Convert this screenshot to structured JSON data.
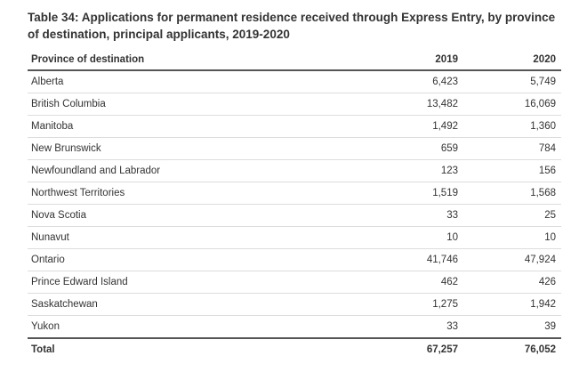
{
  "caption": "Table 34: Applications for permanent residence received through Express Entry, by province of destination, principal applicants, 2019-2020",
  "headers": {
    "province": "Province of destination",
    "y2019": "2019",
    "y2020": "2020"
  },
  "rows": [
    {
      "province": "Alberta",
      "y2019": "6,423",
      "y2020": "5,749"
    },
    {
      "province": "British Columbia",
      "y2019": "13,482",
      "y2020": "16,069"
    },
    {
      "province": "Manitoba",
      "y2019": "1,492",
      "y2020": "1,360"
    },
    {
      "province": "New Brunswick",
      "y2019": "659",
      "y2020": "784"
    },
    {
      "province": "Newfoundland and Labrador",
      "y2019": "123",
      "y2020": "156"
    },
    {
      "province": "Northwest Territories",
      "y2019": "1,519",
      "y2020": "1,568"
    },
    {
      "province": "Nova Scotia",
      "y2019": "33",
      "y2020": "25"
    },
    {
      "province": "Nunavut",
      "y2019": "10",
      "y2020": "10"
    },
    {
      "province": "Ontario",
      "y2019": "41,746",
      "y2020": "47,924"
    },
    {
      "province": "Prince Edward Island",
      "y2019": "462",
      "y2020": "426"
    },
    {
      "province": "Saskatchewan",
      "y2019": "1,275",
      "y2020": "1,942"
    },
    {
      "province": "Yukon",
      "y2019": "33",
      "y2020": "39"
    }
  ],
  "total": {
    "province": "Total",
    "y2019": "67,257",
    "y2020": "76,052"
  }
}
